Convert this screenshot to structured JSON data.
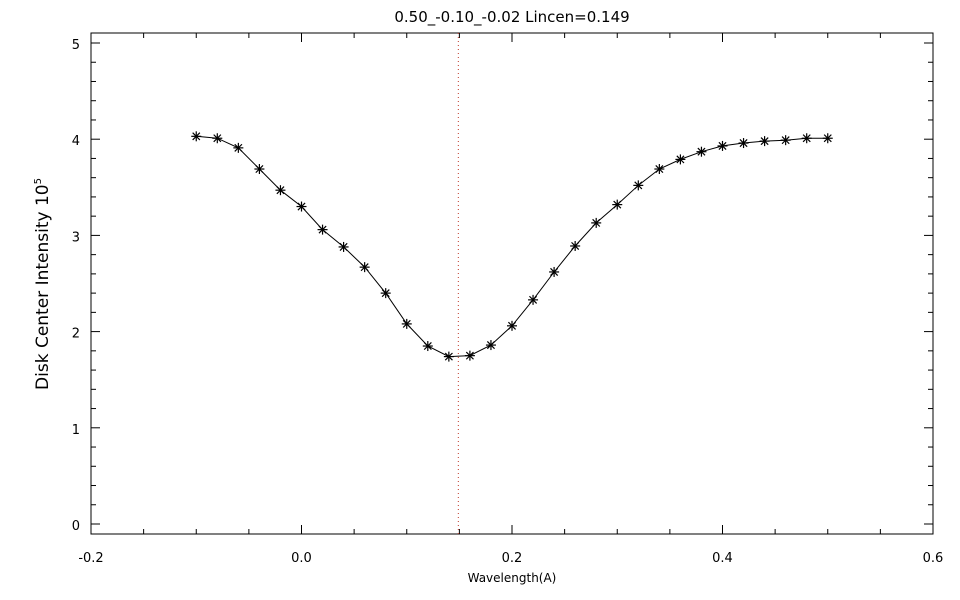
{
  "chart_data": {
    "type": "line",
    "title": "0.50_-0.10_-0.02   Lincen=0.149",
    "xlabel": "Wavelength(A)",
    "ylabel": "Disk Center Intensity 10",
    "ylabel_exponent": "5",
    "xlim": [
      -0.2,
      0.6
    ],
    "ylim": [
      0,
      5
    ],
    "x_ticks": [
      -0.2,
      0.0,
      0.2,
      0.4,
      0.6
    ],
    "x_tick_labels": [
      "-0.2",
      "0.0",
      "0.2",
      "0.4",
      "0.6"
    ],
    "y_ticks": [
      0,
      1,
      2,
      3,
      4,
      5
    ],
    "y_tick_labels": [
      "0",
      "1",
      "2",
      "3",
      "4",
      "5"
    ],
    "grid": false,
    "marker": "asterisk",
    "line_color": "#000000",
    "vline": {
      "x": 0.149,
      "color": "#c0392b",
      "style": "dotted"
    },
    "series": [
      {
        "x": [
          -0.1,
          -0.08,
          -0.06,
          -0.04,
          -0.02,
          0.0,
          0.02,
          0.04,
          0.06,
          0.08,
          0.1,
          0.12,
          0.14,
          0.16,
          0.18,
          0.2,
          0.22,
          0.24,
          0.26,
          0.28,
          0.3,
          0.32,
          0.34,
          0.36,
          0.38,
          0.4,
          0.42,
          0.44,
          0.46,
          0.48,
          0.5
        ],
        "y": [
          4.03,
          4.01,
          3.91,
          3.69,
          3.47,
          3.3,
          3.06,
          2.88,
          2.67,
          2.4,
          2.08,
          1.85,
          1.74,
          1.75,
          1.86,
          2.06,
          2.33,
          2.62,
          2.89,
          3.13,
          3.32,
          3.52,
          3.69,
          3.79,
          3.87,
          3.93,
          3.96,
          3.98,
          3.99,
          4.01,
          4.01
        ]
      }
    ]
  }
}
